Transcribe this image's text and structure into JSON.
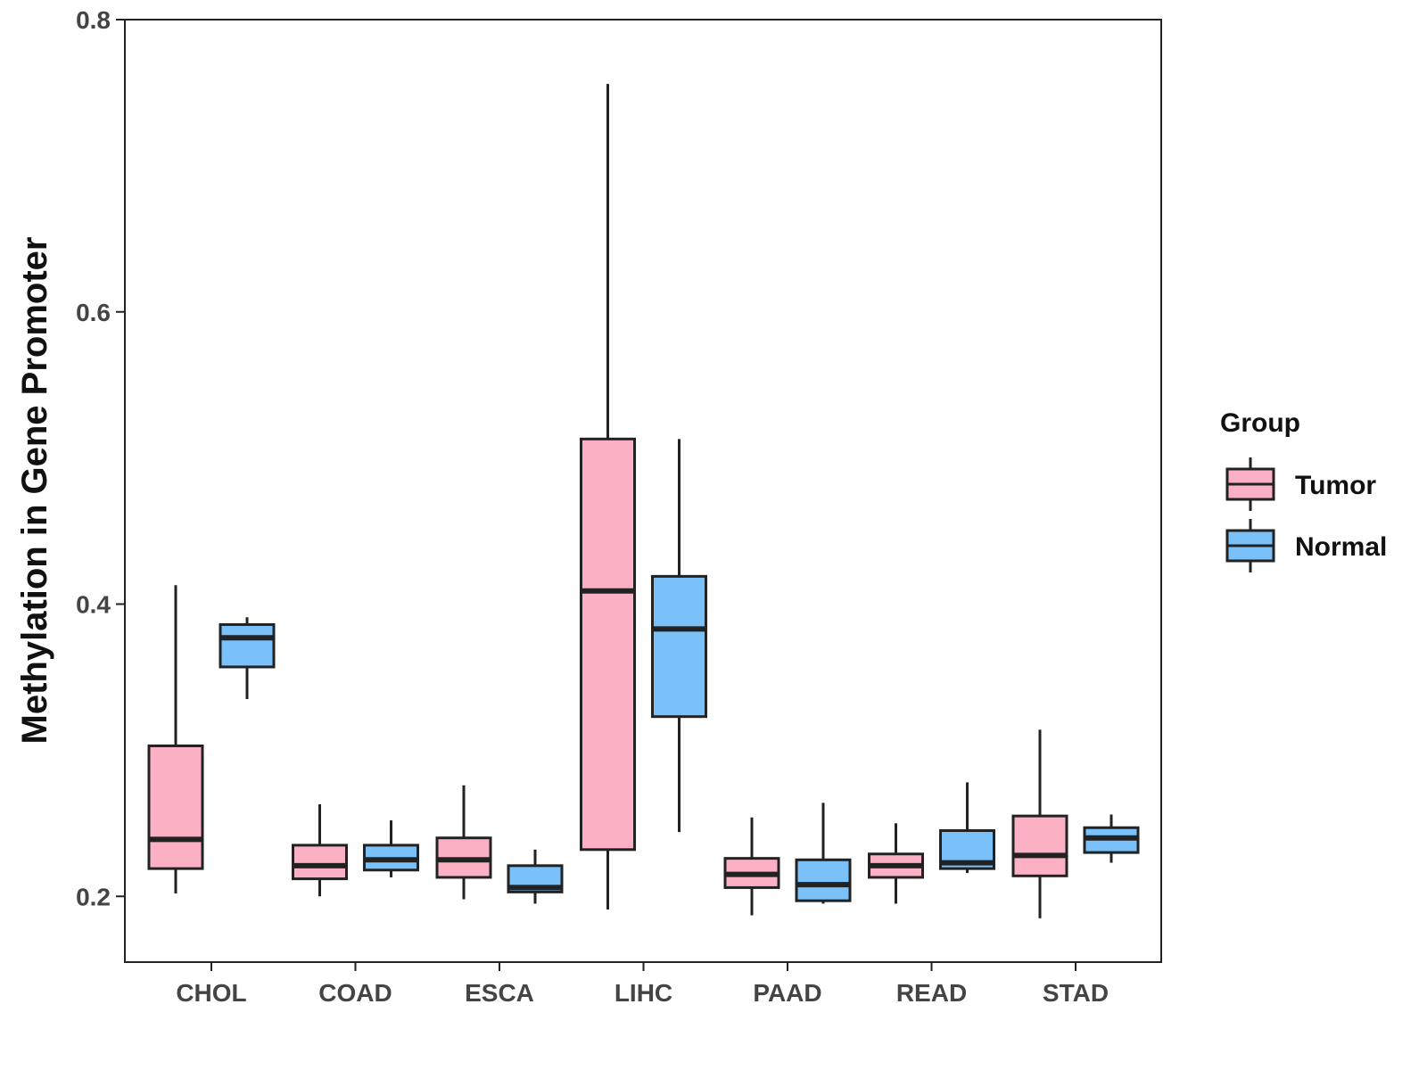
{
  "chart_data": {
    "type": "boxplot",
    "title": "",
    "xlabel": "",
    "ylabel": "Methylation in Gene Promoter",
    "ylim": [
      0.155,
      0.8
    ],
    "yticks": [
      0.2,
      0.4,
      0.6,
      0.8
    ],
    "ytick_labels": [
      "0.2",
      "0.4",
      "0.6",
      "0.8"
    ],
    "categories": [
      "CHOL",
      "COAD",
      "ESCA",
      "LIHC",
      "PAAD",
      "READ",
      "STAD"
    ],
    "legend": {
      "title": "Group",
      "position": "right",
      "entries": [
        {
          "name": "Tumor",
          "color": "#FBB1C3"
        },
        {
          "name": "Normal",
          "color": "#79C1F8"
        }
      ]
    },
    "series": [
      {
        "name": "Tumor",
        "color": "#FBB1C3",
        "boxes": [
          {
            "category": "CHOL",
            "min": 0.202,
            "q1": 0.219,
            "median": 0.239,
            "q3": 0.303,
            "max": 0.413
          },
          {
            "category": "COAD",
            "min": 0.2,
            "q1": 0.212,
            "median": 0.221,
            "q3": 0.235,
            "max": 0.263
          },
          {
            "category": "ESCA",
            "min": 0.198,
            "q1": 0.213,
            "median": 0.225,
            "q3": 0.24,
            "max": 0.276
          },
          {
            "category": "LIHC",
            "min": 0.191,
            "q1": 0.232,
            "median": 0.409,
            "q3": 0.513,
            "max": 0.756
          },
          {
            "category": "PAAD",
            "min": 0.187,
            "q1": 0.206,
            "median": 0.215,
            "q3": 0.226,
            "max": 0.254
          },
          {
            "category": "READ",
            "min": 0.195,
            "q1": 0.213,
            "median": 0.221,
            "q3": 0.229,
            "max": 0.25
          },
          {
            "category": "STAD",
            "min": 0.185,
            "q1": 0.214,
            "median": 0.228,
            "q3": 0.255,
            "max": 0.314
          }
        ]
      },
      {
        "name": "Normal",
        "color": "#79C1F8",
        "boxes": [
          {
            "category": "CHOL",
            "min": 0.335,
            "q1": 0.357,
            "median": 0.377,
            "q3": 0.386,
            "max": 0.391
          },
          {
            "category": "COAD",
            "min": 0.213,
            "q1": 0.218,
            "median": 0.225,
            "q3": 0.235,
            "max": 0.252
          },
          {
            "category": "ESCA",
            "min": 0.195,
            "q1": 0.203,
            "median": 0.206,
            "q3": 0.221,
            "max": 0.232
          },
          {
            "category": "LIHC",
            "min": 0.244,
            "q1": 0.323,
            "median": 0.383,
            "q3": 0.419,
            "max": 0.513
          },
          {
            "category": "PAAD",
            "min": 0.195,
            "q1": 0.197,
            "median": 0.208,
            "q3": 0.225,
            "max": 0.264
          },
          {
            "category": "READ",
            "min": 0.216,
            "q1": 0.219,
            "median": 0.223,
            "q3": 0.245,
            "max": 0.278
          },
          {
            "category": "STAD",
            "min": 0.223,
            "q1": 0.23,
            "median": 0.24,
            "q3": 0.247,
            "max": 0.256
          }
        ]
      }
    ]
  }
}
